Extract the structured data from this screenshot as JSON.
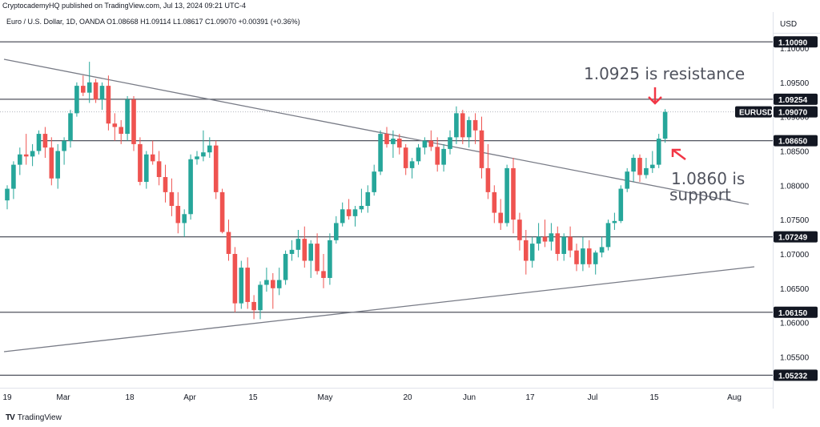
{
  "header": {
    "published": "CryptocademyHQ published on TradingView.com, Jul 13, 2024 09:21 UTC-4",
    "symbol_line": "Euro / U.S. Dollar, 1D, OANDA  O1.08668  H1.09114  L1.08617  C1.09070  +0.00391 (+0.36%)"
  },
  "axis": {
    "currency": "USD",
    "price_ticks": [
      "1.10000",
      "1.09500",
      "1.09000",
      "1.08500",
      "1.08000",
      "1.07500",
      "1.07000",
      "1.06500",
      "1.06000",
      "1.05500"
    ],
    "date_ticks": [
      "19",
      "Mar",
      "18",
      "Apr",
      "15",
      "May",
      "20",
      "Jun",
      "17",
      "Jul",
      "15",
      "Aug"
    ]
  },
  "tags": {
    "symbol": "EURUSD",
    "levels": [
      "1.10090",
      "1.09254",
      "1.09070",
      "1.08650",
      "1.07249",
      "1.06150",
      "1.05232"
    ]
  },
  "annotations": {
    "resistance": "1.0925 is resistance",
    "support_line1": "1.0860 is",
    "support_line2": "support"
  },
  "colors": {
    "up": "#26a69a",
    "down": "#ef5350",
    "level_line": "#50535e",
    "arrow": "#f23645",
    "text": "#131722"
  },
  "footer": {
    "brand": "TradingView"
  },
  "chart_data": {
    "type": "candlestick",
    "title": "Euro / U.S. Dollar, 1D, OANDA",
    "ylim": [
      1.0505,
      1.1021
    ],
    "horizontal_levels": [
      1.1009,
      1.09254,
      1.0865,
      1.07249,
      1.0615,
      1.05232
    ],
    "trendlines": [
      {
        "from": [
          "2024-02-16",
          1.0995
        ],
        "to": [
          "2024-07-26",
          1.078
        ]
      },
      {
        "from": [
          "2024-02-16",
          1.0573
        ],
        "to": [
          "2024-07-26",
          1.0683
        ]
      }
    ],
    "candles": [
      [
        1.0778,
        1.08,
        1.0765,
        1.0795
      ],
      [
        1.0795,
        1.0835,
        1.078,
        1.083
      ],
      [
        1.083,
        1.0855,
        1.0815,
        1.0845
      ],
      [
        1.0845,
        1.0875,
        1.083,
        1.0842
      ],
      [
        1.0842,
        1.086,
        1.0828,
        1.085
      ],
      [
        1.085,
        1.088,
        1.0845,
        1.0875
      ],
      [
        1.0875,
        1.0885,
        1.084,
        1.0855
      ],
      [
        1.0855,
        1.087,
        1.08,
        1.081
      ],
      [
        1.081,
        1.086,
        1.0795,
        1.085
      ],
      [
        1.085,
        1.087,
        1.083,
        1.0865
      ],
      [
        1.0865,
        1.091,
        1.0855,
        1.0905
      ],
      [
        1.0905,
        1.095,
        1.09,
        1.0945
      ],
      [
        1.0945,
        1.096,
        1.093,
        1.0935
      ],
      [
        1.0935,
        1.098,
        1.092,
        1.095
      ],
      [
        1.095,
        1.0955,
        1.092,
        1.0925
      ],
      [
        1.0925,
        1.095,
        1.091,
        1.0945
      ],
      [
        1.0945,
        1.096,
        1.088,
        1.089
      ],
      [
        1.089,
        1.0905,
        1.0865,
        1.0885
      ],
      [
        1.0885,
        1.0895,
        1.086,
        1.0875
      ],
      [
        1.0875,
        1.093,
        1.0865,
        1.0925
      ],
      [
        1.0925,
        1.093,
        1.085,
        1.086
      ],
      [
        1.086,
        1.087,
        1.08,
        1.0805
      ],
      [
        1.0805,
        1.085,
        1.0795,
        1.0845
      ],
      [
        1.0845,
        1.0865,
        1.083,
        1.0835
      ],
      [
        1.0835,
        1.085,
        1.08,
        1.0812
      ],
      [
        1.0812,
        1.083,
        1.0775,
        1.079
      ],
      [
        1.079,
        1.081,
        1.0755,
        1.077
      ],
      [
        1.077,
        1.079,
        1.073,
        1.0745
      ],
      [
        1.0745,
        1.0765,
        1.0725,
        1.0758
      ],
      [
        1.0758,
        1.0845,
        1.075,
        1.0838
      ],
      [
        1.0838,
        1.085,
        1.083,
        1.0842
      ],
      [
        1.0842,
        1.088,
        1.0835,
        1.0848
      ],
      [
        1.0848,
        1.087,
        1.084,
        1.0858
      ],
      [
        1.0858,
        1.0865,
        1.078,
        1.079
      ],
      [
        1.079,
        1.0795,
        1.073,
        1.0732
      ],
      [
        1.0732,
        1.075,
        1.069,
        1.07
      ],
      [
        1.07,
        1.071,
        1.0615,
        1.0628
      ],
      [
        1.0628,
        1.069,
        1.062,
        1.068
      ],
      [
        1.068,
        1.0695,
        1.062,
        1.063
      ],
      [
        1.063,
        1.064,
        1.0605,
        1.0618
      ],
      [
        1.0618,
        1.066,
        1.0605,
        1.0655
      ],
      [
        1.0655,
        1.068,
        1.0645,
        1.0662
      ],
      [
        1.0662,
        1.0672,
        1.062,
        1.065
      ],
      [
        1.065,
        1.068,
        1.064,
        1.0662
      ],
      [
        1.0662,
        1.0705,
        1.0655,
        1.07
      ],
      [
        1.07,
        1.072,
        1.069,
        1.0706
      ],
      [
        1.0706,
        1.0735,
        1.0695,
        1.0722
      ],
      [
        1.0722,
        1.074,
        1.068,
        1.069
      ],
      [
        1.069,
        1.072,
        1.0665,
        1.0715
      ],
      [
        1.0715,
        1.073,
        1.067,
        1.0675
      ],
      [
        1.0675,
        1.07,
        1.065,
        1.0665
      ],
      [
        1.0665,
        1.073,
        1.0655,
        1.072
      ],
      [
        1.072,
        1.0755,
        1.0715,
        1.0745
      ],
      [
        1.0745,
        1.0775,
        1.074,
        1.0765
      ],
      [
        1.0765,
        1.078,
        1.075,
        1.0755
      ],
      [
        1.0755,
        1.077,
        1.074,
        1.0765
      ],
      [
        1.0765,
        1.0795,
        1.076,
        1.077
      ],
      [
        1.077,
        1.08,
        1.076,
        1.079
      ],
      [
        1.079,
        1.083,
        1.0785,
        1.082
      ],
      [
        1.082,
        1.088,
        1.0815,
        1.0875
      ],
      [
        1.0875,
        1.0885,
        1.0855,
        1.086
      ],
      [
        1.086,
        1.088,
        1.084,
        1.0868
      ],
      [
        1.0868,
        1.0875,
        1.0845,
        1.0855
      ],
      [
        1.0855,
        1.086,
        1.0815,
        1.0825
      ],
      [
        1.0825,
        1.084,
        1.081,
        1.0835
      ],
      [
        1.0835,
        1.086,
        1.083,
        1.0855
      ],
      [
        1.0855,
        1.087,
        1.0845,
        1.0865
      ],
      [
        1.0865,
        1.088,
        1.085,
        1.0856
      ],
      [
        1.0856,
        1.087,
        1.082,
        1.083
      ],
      [
        1.083,
        1.086,
        1.082,
        1.0853
      ],
      [
        1.0853,
        1.088,
        1.0845,
        1.087
      ],
      [
        1.087,
        1.0915,
        1.086,
        1.0905
      ],
      [
        1.0905,
        1.091,
        1.086,
        1.087
      ],
      [
        1.087,
        1.09,
        1.0855,
        1.0895
      ],
      [
        1.0895,
        1.0905,
        1.086,
        1.088
      ],
      [
        1.088,
        1.09,
        1.081,
        1.0825
      ],
      [
        1.0825,
        1.086,
        1.078,
        1.079
      ],
      [
        1.079,
        1.08,
        1.0745,
        1.076
      ],
      [
        1.076,
        1.078,
        1.0735,
        1.0745
      ],
      [
        1.0745,
        1.083,
        1.074,
        1.0825
      ],
      [
        1.0825,
        1.084,
        1.073,
        1.075
      ],
      [
        1.075,
        1.076,
        1.0705,
        1.072
      ],
      [
        1.072,
        1.0735,
        1.067,
        1.069
      ],
      [
        1.069,
        1.0725,
        1.068,
        1.0715
      ],
      [
        1.0715,
        1.0745,
        1.0705,
        1.0725
      ],
      [
        1.0725,
        1.075,
        1.071,
        1.0718
      ],
      [
        1.0718,
        1.0745,
        1.0705,
        1.073
      ],
      [
        1.073,
        1.074,
        1.069,
        1.07
      ],
      [
        1.07,
        1.073,
        1.069,
        1.0725
      ],
      [
        1.0725,
        1.074,
        1.0695,
        1.0705
      ],
      [
        1.0705,
        1.0715,
        1.0675,
        1.0685
      ],
      [
        1.0685,
        1.0725,
        1.0675,
        1.0708
      ],
      [
        1.0708,
        1.072,
        1.068,
        1.0685
      ],
      [
        1.0685,
        1.0705,
        1.067,
        1.0702
      ],
      [
        1.0702,
        1.0725,
        1.0695,
        1.071
      ],
      [
        1.071,
        1.075,
        1.0705,
        1.0745
      ],
      [
        1.0745,
        1.076,
        1.0735,
        1.0748
      ],
      [
        1.0748,
        1.08,
        1.0745,
        1.0795
      ],
      [
        1.0795,
        1.0825,
        1.079,
        1.082
      ],
      [
        1.082,
        1.0845,
        1.0805,
        1.084
      ],
      [
        1.084,
        1.0845,
        1.0805,
        1.0815
      ],
      [
        1.0815,
        1.084,
        1.081,
        1.0825
      ],
      [
        1.0825,
        1.085,
        1.0818,
        1.083
      ],
      [
        1.083,
        1.0875,
        1.0825,
        1.0868
      ],
      [
        1.0868,
        1.0911,
        1.0862,
        1.0907
      ]
    ]
  }
}
